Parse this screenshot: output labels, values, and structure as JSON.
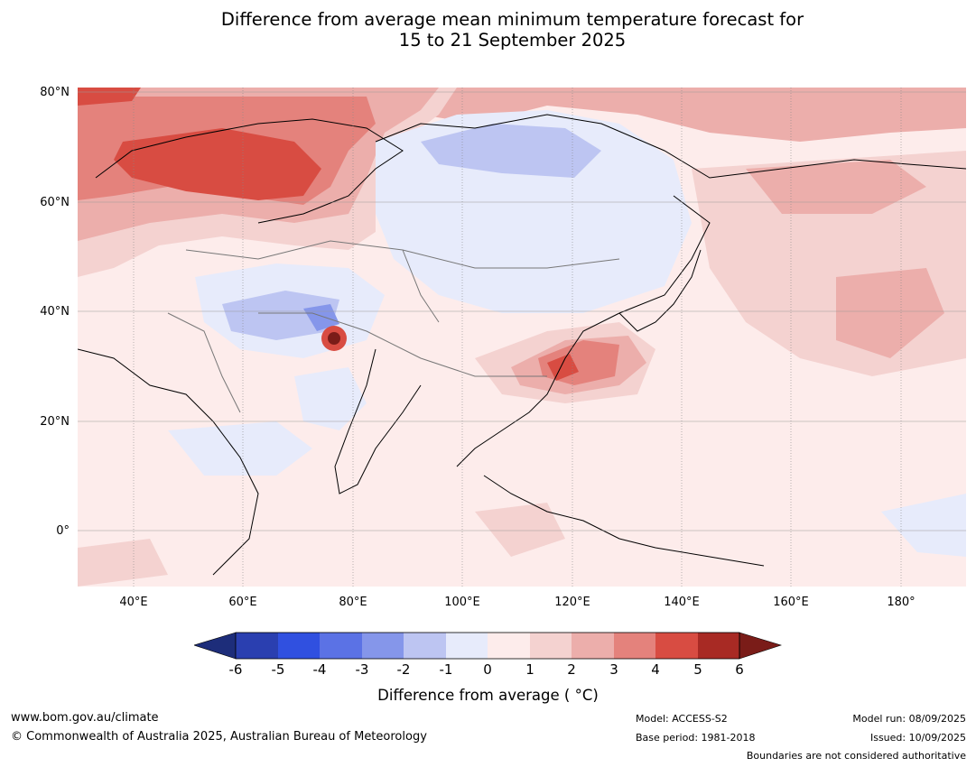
{
  "title_line1": "Difference from average mean minimum temperature forecast for",
  "title_line2": "15 to 21 September 2025",
  "map": {
    "lat_labels": [
      "80°N",
      "60°N",
      "40°N",
      "20°N",
      "0°"
    ],
    "lon_labels": [
      "40°E",
      "60°E",
      "80°E",
      "100°E",
      "120°E",
      "140°E",
      "160°E",
      "180°"
    ],
    "colors": {
      "minus6": "#1d2d7a",
      "minus5": "#2a3fb0",
      "minus4": "#3050e0",
      "minus3": "#5b72e5",
      "minus2": "#8596ea",
      "minus1": "#bdc5f2",
      "zero_neg": "#e7ebfb",
      "zero_pos": "#fdeceb",
      "plus1": "#f4d2d0",
      "plus2": "#ecaeab",
      "plus3": "#e4827c",
      "plus4": "#d84c42",
      "plus5": "#a82a24",
      "plus6": "#7a1c18"
    }
  },
  "colorbar": {
    "ticks": [
      "-6",
      "-5",
      "-4",
      "-3",
      "-2",
      "-1",
      "0",
      "1",
      "2",
      "3",
      "4",
      "5",
      "6"
    ],
    "label": "Difference from average ( °C)"
  },
  "footer": {
    "website": "www.bom.gov.au/climate",
    "copyright": "© Commonwealth of Australia 2025, Australian Bureau of Meteorology",
    "model": "Model: ACCESS-S2",
    "base_period": "Base period: 1981-2018",
    "model_run": "Model run: 08/09/2025",
    "issued": "Issued: 10/09/2025",
    "disclaimer": "Boundaries are not considered authoritative"
  }
}
